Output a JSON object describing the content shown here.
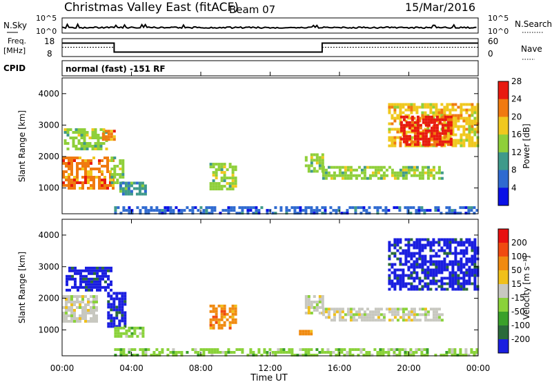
{
  "header": {
    "title": "Christmas Valley East (fitACF)",
    "beam": "Beam 07",
    "date": "15/Mar/2016"
  },
  "strips": {
    "nsky_label": "N.Sky",
    "nsky_tick_top": "10^5",
    "nsky_tick_bottom": "10^0",
    "nsearch_label": "N.Search",
    "nsearch_tick_top": "10^5",
    "nsearch_tick_bottom": "10^0",
    "freq_label": "Freq.",
    "freq_unit": "[MHz]",
    "freq_tick_top": "18",
    "freq_tick_bottom": "8",
    "nave_label": "Nave",
    "nave_tick_top": "60",
    "nave_tick_bottom": "0",
    "cpid_label": "CPID",
    "cpid_text": "normal (fast) -151 RF"
  },
  "chart_data": [
    {
      "type": "heatmap",
      "name": "power",
      "ylabel": "Slant Range [km]",
      "ylim": [
        180,
        4500
      ],
      "yticks": [
        "1000",
        "2000",
        "3000",
        "4000"
      ],
      "colorbar_label": "Power [dB]",
      "colorbar_ticks": [
        "4",
        "8",
        "12",
        "16",
        "20",
        "24",
        "28"
      ],
      "colorbar_colors": [
        "#0a10e6",
        "#2f6ad0",
        "#3f9a8a",
        "#8fcf3a",
        "#f0c81e",
        "#f07a10",
        "#e81a10"
      ],
      "regions": [
        {
          "t0": 0.0,
          "t1": 2.9,
          "r0": 1000,
          "r1": 2000,
          "level": 5
        },
        {
          "t0": 0.1,
          "t1": 2.5,
          "r0": 2200,
          "r1": 2900,
          "level": 3
        },
        {
          "t0": 2.3,
          "t1": 3.0,
          "r0": 2500,
          "r1": 2850,
          "level": 5
        },
        {
          "t0": 2.8,
          "t1": 3.5,
          "r0": 1200,
          "r1": 2000,
          "level": 3
        },
        {
          "t0": 3.3,
          "t1": 4.8,
          "r0": 800,
          "r1": 1200,
          "level": 2
        },
        {
          "t0": 8.5,
          "t1": 10.0,
          "r0": 1000,
          "r1": 1800,
          "level": 3
        },
        {
          "t0": 14.0,
          "t1": 15.0,
          "r0": 1500,
          "r1": 2100,
          "level": 3
        },
        {
          "t0": 15.0,
          "t1": 22.0,
          "r0": 1300,
          "r1": 1700,
          "level": 3
        },
        {
          "t0": 18.8,
          "t1": 24.0,
          "r0": 2300,
          "r1": 3700,
          "level": 4
        },
        {
          "t0": 19.5,
          "t1": 22.5,
          "r0": 2400,
          "r1": 3300,
          "level": 6
        },
        {
          "t0": 3.0,
          "t1": 24.0,
          "r0": 200,
          "r1": 420,
          "level": 1
        }
      ]
    },
    {
      "type": "heatmap",
      "name": "velocity",
      "ylabel": "Slant Range [km]",
      "ylim": [
        180,
        4500
      ],
      "yticks": [
        "1000",
        "2000",
        "3000",
        "4000"
      ],
      "colorbar_label": "Velocity [m s⁻¹]",
      "colorbar_ticks": [
        "200",
        "100",
        "50",
        "15",
        "-15",
        "-50",
        "-100",
        "-200"
      ],
      "colorbar_colors": [
        "#1a1ee0",
        "#2a6a3a",
        "#3aa02a",
        "#8ad23a",
        "#c8c8c0",
        "#f0c01a",
        "#f08a10",
        "#f04a10",
        "#e81010"
      ],
      "regions": [
        {
          "t0": 0.0,
          "t1": 2.0,
          "r0": 1300,
          "r1": 2100,
          "level": 4
        },
        {
          "t0": 0.2,
          "t1": 2.9,
          "r0": 2300,
          "r1": 3000,
          "level": 0
        },
        {
          "t0": 2.6,
          "t1": 3.6,
          "r0": 1100,
          "r1": 2200,
          "level": 0
        },
        {
          "t0": 3.0,
          "t1": 4.6,
          "r0": 800,
          "r1": 1100,
          "level": 3
        },
        {
          "t0": 8.5,
          "t1": 10.0,
          "r0": 1100,
          "r1": 1800,
          "level": 6
        },
        {
          "t0": 14.0,
          "t1": 15.0,
          "r0": 1500,
          "r1": 2100,
          "level": 4
        },
        {
          "t0": 15.0,
          "t1": 22.0,
          "r0": 1300,
          "r1": 1700,
          "level": 4
        },
        {
          "t0": 18.8,
          "t1": 24.0,
          "r0": 2300,
          "r1": 3900,
          "level": 0
        },
        {
          "t0": 13.5,
          "t1": 14.4,
          "r0": 900,
          "r1": 1000,
          "level": 6
        },
        {
          "t0": 3.0,
          "t1": 24.0,
          "r0": 200,
          "r1": 420,
          "level": 3
        }
      ]
    }
  ],
  "xaxis": {
    "label": "Time UT",
    "ticks": [
      "00:00",
      "04:00",
      "08:00",
      "12:00",
      "16:00",
      "20:00",
      "00:00"
    ],
    "range_hours": [
      0,
      24
    ]
  },
  "freq_series": {
    "hours": [
      0,
      3.0,
      3.0,
      15.0,
      15.0,
      24
    ],
    "mhz": [
      15.5,
      15.5,
      10.5,
      10.5,
      15.5,
      15.5
    ]
  }
}
